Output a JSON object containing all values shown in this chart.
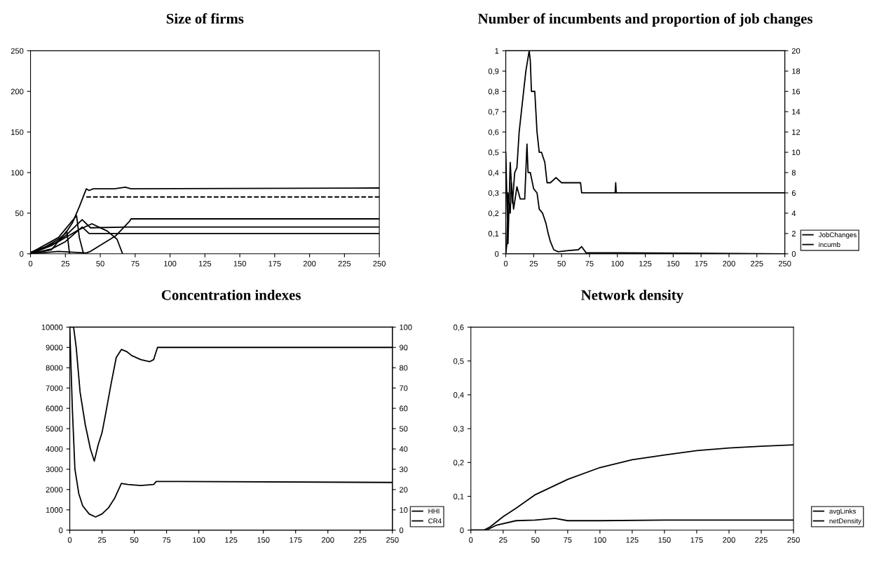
{
  "chart_data": [
    {
      "type": "line",
      "title": "Size of firms",
      "xlim": [
        0,
        250
      ],
      "ylim": [
        0,
        250
      ],
      "xticks": [
        0,
        25,
        50,
        75,
        100,
        125,
        150,
        175,
        200,
        225,
        250
      ],
      "yticks": [
        0,
        50,
        100,
        150,
        200,
        250
      ],
      "grid": false,
      "legend": false,
      "marker": "none",
      "line_style": "solid",
      "series": [
        {
          "color": "#000000",
          "x": [
            0,
            10,
            20,
            25,
            30,
            35,
            40,
            42,
            45,
            60,
            68,
            72,
            250
          ],
          "values": [
            2,
            8,
            18,
            25,
            38,
            58,
            80,
            78,
            80,
            80,
            82,
            80,
            81
          ]
        },
        {
          "color": "#000000",
          "line_style": "dashed",
          "x": [
            40,
            250
          ],
          "values": [
            70,
            70
          ]
        },
        {
          "color": "#000000",
          "x": [
            0,
            20,
            40,
            43,
            61,
            71,
            72,
            250
          ],
          "values": [
            0,
            3,
            1,
            3,
            22,
            40,
            43,
            43
          ]
        },
        {
          "color": "#000000",
          "x": [
            0,
            15,
            25,
            37,
            43,
            70,
            250
          ],
          "values": [
            0,
            10,
            22,
            42,
            32,
            33,
            33
          ]
        },
        {
          "color": "#000000",
          "x": [
            0,
            15,
            25,
            37,
            42,
            250
          ],
          "values": [
            0,
            6,
            15,
            33,
            25,
            25
          ]
        },
        {
          "color": "#000000",
          "x": [
            0,
            20,
            35,
            44,
            55,
            62,
            66
          ],
          "values": [
            1,
            15,
            30,
            37,
            28,
            18,
            0
          ]
        },
        {
          "color": "#000000",
          "x": [
            0,
            20,
            33,
            35,
            38
          ],
          "values": [
            1,
            20,
            47,
            20,
            0
          ]
        },
        {
          "color": "#000000",
          "x": [
            0,
            15,
            26,
            28
          ],
          "values": [
            0,
            5,
            28,
            0
          ]
        }
      ]
    },
    {
      "type": "line",
      "title": "Number of incumbents and proportion of job changes",
      "xlim": [
        0,
        250
      ],
      "ylim": [
        0,
        1
      ],
      "y2lim": [
        0,
        20
      ],
      "xticks": [
        0,
        25,
        50,
        75,
        100,
        125,
        150,
        175,
        200,
        225,
        250
      ],
      "yticks": [
        0,
        {
          "value": 0.1,
          "label": "0,1"
        },
        {
          "value": 0.2,
          "label": "0,2"
        },
        {
          "value": 0.3,
          "label": "0,3"
        },
        {
          "value": 0.4,
          "label": "0,4"
        },
        {
          "value": 0.5,
          "label": "0,5"
        },
        {
          "value": 0.6,
          "label": "0,6"
        },
        {
          "value": 0.7,
          "label": "0,7"
        },
        {
          "value": 0.8,
          "label": "0,8"
        },
        {
          "value": 0.9,
          "label": "0,9"
        },
        1
      ],
      "y2ticks": [
        0,
        2,
        4,
        6,
        8,
        10,
        12,
        14,
        16,
        18,
        20
      ],
      "grid": false,
      "legend": "right",
      "marker": "none",
      "line_style": "solid",
      "series": [
        {
          "name": "JobChanges",
          "color": "#000000",
          "x": [
            0,
            1,
            2,
            4,
            5,
            7,
            10,
            13,
            17,
            19,
            20,
            22,
            25,
            28,
            30,
            33,
            36,
            38,
            40,
            43,
            47,
            55,
            65,
            68,
            72,
            100,
            250
          ],
          "values": [
            0,
            0.05,
            0.3,
            0.2,
            0.35,
            0.22,
            0.33,
            0.27,
            0.27,
            0.54,
            0.4,
            0.4,
            0.32,
            0.3,
            0.22,
            0.2,
            0.15,
            0.1,
            0.06,
            0.02,
            0.01,
            0.015,
            0.02,
            0.035,
            0.005,
            0.005,
            0
          ]
        },
        {
          "name": "incumb",
          "color": "#000000",
          "axis": "y2",
          "x": [
            0,
            2,
            4,
            6,
            8,
            10,
            12,
            15,
            18,
            21,
            22,
            23,
            26,
            28,
            30,
            32,
            35,
            37,
            40,
            45,
            50,
            60,
            67,
            68,
            98,
            98.5,
            99,
            250
          ],
          "values": [
            10,
            1,
            9,
            5,
            8,
            8.5,
            12,
            15,
            18,
            20,
            19,
            16,
            16,
            12,
            10,
            10,
            9,
            7,
            7,
            7.5,
            7,
            7,
            7,
            6,
            6,
            7,
            6,
            6
          ]
        }
      ]
    },
    {
      "type": "line",
      "title": "Concentration indexes",
      "xlim": [
        0,
        250
      ],
      "ylim": [
        0,
        10000
      ],
      "y2lim": [
        0,
        100
      ],
      "xticks": [
        0,
        25,
        50,
        75,
        100,
        125,
        150,
        175,
        200,
        225,
        250
      ],
      "yticks": [
        0,
        1000,
        2000,
        3000,
        4000,
        5000,
        6000,
        7000,
        8000,
        9000,
        10000
      ],
      "y2ticks": [
        0,
        10,
        20,
        30,
        40,
        50,
        60,
        70,
        80,
        90,
        100
      ],
      "grid": false,
      "legend": "right",
      "marker": "none",
      "line_style": "solid",
      "series": [
        {
          "name": "HHI",
          "color": "#000000",
          "x": [
            0,
            2,
            4,
            7,
            10,
            15,
            20,
            25,
            30,
            35,
            40,
            45,
            55,
            65,
            67,
            250
          ],
          "values": [
            10000,
            6000,
            3000,
            1800,
            1200,
            800,
            650,
            800,
            1100,
            1600,
            2300,
            2250,
            2200,
            2250,
            2400,
            2350
          ]
        },
        {
          "name": "CR4",
          "color": "#000000",
          "axis": "y2",
          "x": [
            0,
            3,
            5,
            8,
            12,
            16,
            19,
            22,
            25,
            28,
            32,
            36,
            40,
            44,
            48,
            55,
            62,
            65,
            68,
            250
          ],
          "values": [
            100,
            100,
            90,
            68,
            52,
            40,
            34,
            42,
            48,
            58,
            72,
            85,
            89,
            88,
            86,
            84,
            83,
            84,
            90,
            90
          ]
        }
      ]
    },
    {
      "type": "line",
      "title": "Network density",
      "xlim": [
        0,
        250
      ],
      "ylim": [
        0,
        0.6
      ],
      "xticks": [
        0,
        25,
        50,
        75,
        100,
        125,
        150,
        175,
        200,
        225,
        250
      ],
      "yticks": [
        0,
        {
          "value": 0.1,
          "label": "0,1"
        },
        {
          "value": 0.2,
          "label": "0,2"
        },
        {
          "value": 0.3,
          "label": "0,3"
        },
        {
          "value": 0.4,
          "label": "0,4"
        },
        {
          "value": 0.5,
          "label": "0,5"
        },
        {
          "value": 0.6,
          "label": "0,6"
        }
      ],
      "grid": false,
      "legend": "right",
      "marker": "none",
      "line_style": "solid",
      "series": [
        {
          "name": "avgLinks",
          "color": "#000000",
          "x": [
            0,
            10,
            15,
            25,
            35,
            50,
            75,
            100,
            125,
            150,
            175,
            200,
            225,
            250
          ],
          "values": [
            0,
            0,
            0.01,
            0.04,
            0.065,
            0.105,
            0.15,
            0.185,
            0.208,
            0.222,
            0.235,
            0.243,
            0.248,
            0.252
          ]
        },
        {
          "name": "netDensity",
          "color": "#000000",
          "x": [
            0,
            12,
            20,
            35,
            50,
            65,
            75,
            100,
            150,
            250
          ],
          "values": [
            0,
            0,
            0.015,
            0.028,
            0.03,
            0.035,
            0.028,
            0.028,
            0.03,
            0.03
          ]
        }
      ]
    }
  ]
}
